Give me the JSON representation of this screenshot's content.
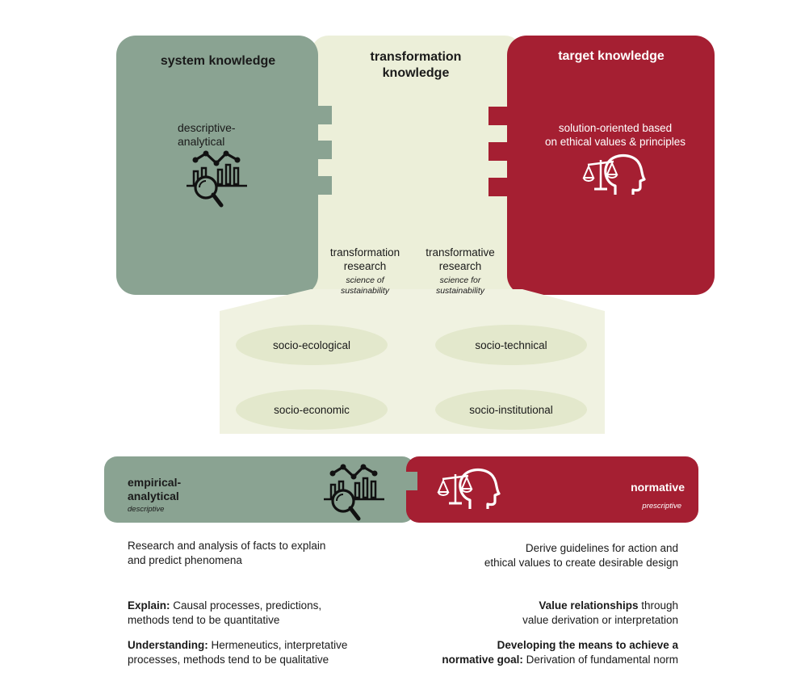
{
  "colors": {
    "green": "#8aa392",
    "cream": "#ecefd9",
    "cream_light": "#f0f2e1",
    "ellipse": "#e3e8cc",
    "red": "#a51f32"
  },
  "panels": {
    "system": {
      "title": "system knowledge",
      "subtitle": "descriptive-\nanalytical",
      "icon": "chart-magnifier-icon"
    },
    "transformation": {
      "title": "transformation\nknowledge",
      "left_label": "transformation\nresearch",
      "left_italic": "science of\nsustainability",
      "right_label": "transformative\nresearch",
      "right_italic": "science for\nsustainability"
    },
    "target": {
      "title": "target knowledge",
      "subtitle": "solution-oriented based\non ethical values & principles",
      "icon": "scales-head-icon"
    }
  },
  "domains": [
    "socio-ecological",
    "socio-technical",
    "socio-economic",
    "socio-institutional"
  ],
  "bottom": {
    "left": {
      "title": "empirical-\nanalytical",
      "italic": "descriptive"
    },
    "right": {
      "title": "normative",
      "italic": "prescriptive"
    }
  },
  "descriptions": {
    "left": {
      "intro": "Research and analysis of facts to explain\nand predict phenomena",
      "p1_bold": "Explain:",
      "p1_text": " Causal processes, predictions,\nmethods tend to be quantitative",
      "p2_bold": "Understanding:",
      "p2_text": " Hermeneutics, interpretative\nprocesses, methods tend to be qualitative"
    },
    "right": {
      "intro": "Derive guidelines for action and\nethical values to create desirable design",
      "p1_bold": "Value relationships",
      "p1_text": " through\nvalue derivation or interpretation",
      "p2_bold": "Developing the means to achieve a\nnormative goal:",
      "p2_text": " Derivation of fundamental norm"
    }
  }
}
